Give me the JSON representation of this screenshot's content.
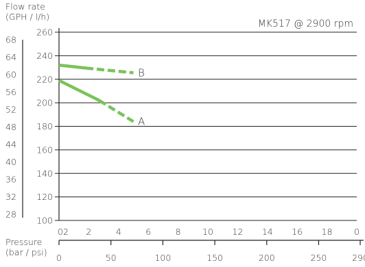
{
  "chart_data": {
    "type": "line",
    "title": "MK517 @ 2900 rpm",
    "ylabel_lines": [
      "Flow rate",
      "(GPH / l/h)"
    ],
    "xlabel_lines": [
      "Pressure",
      "(bar / psi)"
    ],
    "y_primary": {
      "unit": "l/h",
      "ylim": [
        100,
        260
      ],
      "ticks": [
        "100",
        "120",
        "140",
        "160",
        "180",
        "200",
        "220",
        "240",
        "260"
      ]
    },
    "y_secondary": {
      "unit": "GPH",
      "ticks": [
        "28",
        "32",
        "36",
        "40",
        "44",
        "48",
        "52",
        "56",
        "60",
        "64",
        "68"
      ]
    },
    "x_primary": {
      "unit": "bar",
      "xlim": [
        0,
        20
      ],
      "ticks": [
        "02",
        "2",
        "4",
        "6",
        "8",
        "10",
        "12",
        "14",
        "16",
        "18",
        "0"
      ]
    },
    "x_secondary": {
      "unit": "psi",
      "ticks": [
        "0",
        "50",
        "100",
        "150",
        "200",
        "250",
        "290"
      ]
    },
    "series": [
      {
        "name": "B",
        "color": "#7ac35a",
        "solid": [
          [
            0,
            232
          ],
          [
            1.8,
            229.5
          ]
        ],
        "dashed": [
          [
            1.8,
            229.5
          ],
          [
            5,
            225.5
          ]
        ],
        "label_at": [
          5.3,
          225.5
        ]
      },
      {
        "name": "A",
        "color": "#7ac35a",
        "solid": [
          [
            0,
            219
          ],
          [
            2.7,
            202
          ]
        ],
        "dashed": [
          [
            2.7,
            202
          ],
          [
            5,
            184
          ]
        ],
        "label_at": [
          5.3,
          184
        ]
      }
    ]
  }
}
